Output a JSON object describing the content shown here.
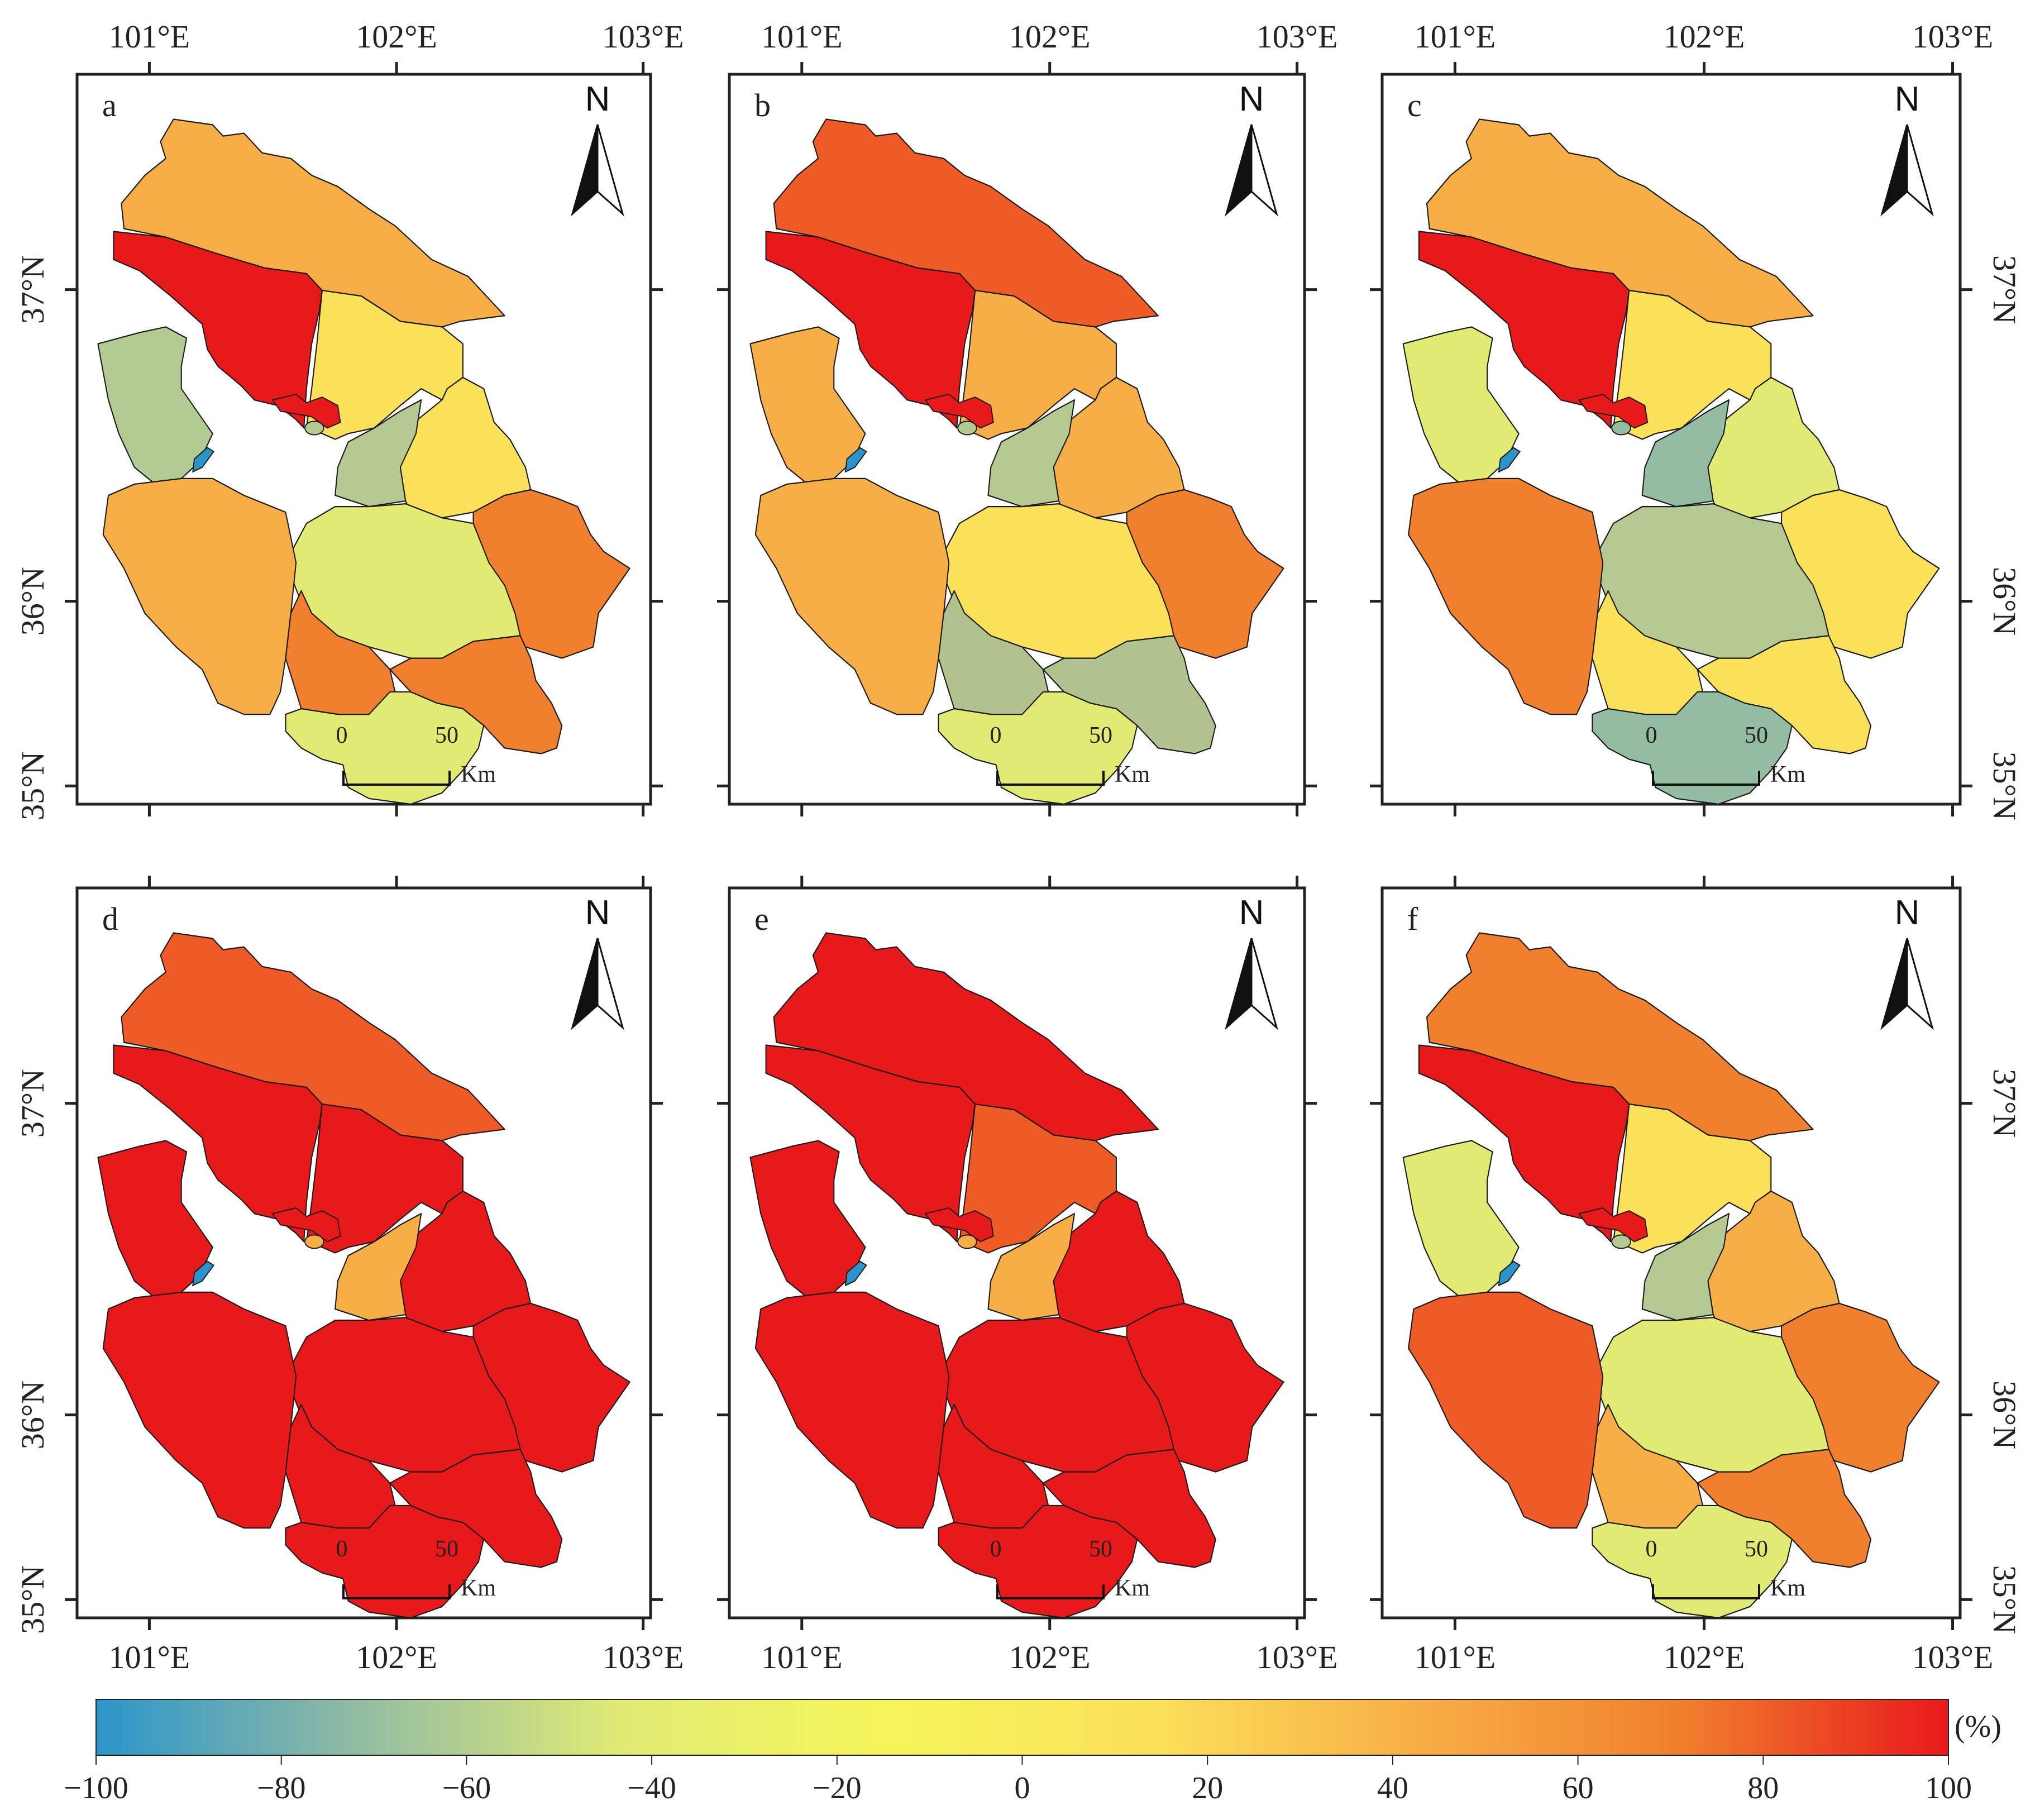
{
  "panels": [
    {
      "letter": "a",
      "colors": {
        "north": "#f8ae46",
        "nw": "#e8191b",
        "center": "#fbe05a",
        "west": "#b2cb92",
        "east": "#fbe05a",
        "cross": "#b6c992",
        "fareast": "#f07f2e",
        "midstrip": "#e1eb74",
        "sw": "#f8ae46",
        "scenter": "#f07f2e",
        "se": "#f07f2e",
        "south": "#e1eb74",
        "spots": "#e8191b"
      }
    },
    {
      "letter": "b",
      "colors": {
        "north": "#ef5b26",
        "nw": "#e8191b",
        "center": "#f8ae46",
        "west": "#f8ae46",
        "east": "#f8ae46",
        "cross": "#b6c992",
        "fareast": "#f07f2e",
        "midstrip": "#fbe05a",
        "sw": "#f8ae46",
        "scenter": "#b2c28e",
        "se": "#b2c28e",
        "south": "#e1eb74",
        "spots": "#e8191b"
      }
    },
    {
      "letter": "c",
      "colors": {
        "north": "#f8ae46",
        "nw": "#e8191b",
        "center": "#fbe05a",
        "west": "#e1eb74",
        "east": "#e1eb74",
        "cross": "#93bca2",
        "fareast": "#fbe05a",
        "midstrip": "#b6c992",
        "sw": "#f07f2e",
        "scenter": "#fbe05a",
        "se": "#fbe05a",
        "south": "#93bca2",
        "spots": "#e8191b"
      }
    },
    {
      "letter": "d",
      "colors": {
        "north": "#ef5b26",
        "nw": "#e8191b",
        "center": "#e8191b",
        "west": "#e8191b",
        "east": "#e8191b",
        "cross": "#f8ae46",
        "fareast": "#e8191b",
        "midstrip": "#e8191b",
        "sw": "#e8191b",
        "scenter": "#e8191b",
        "se": "#e8191b",
        "south": "#e8191b",
        "spots": "#e8191b"
      }
    },
    {
      "letter": "e",
      "colors": {
        "north": "#e8191b",
        "nw": "#e8191b",
        "center": "#ef5b26",
        "west": "#e8191b",
        "east": "#e8191b",
        "cross": "#f8ae46",
        "fareast": "#e8191b",
        "midstrip": "#e8191b",
        "sw": "#e8191b",
        "scenter": "#e8191b",
        "se": "#e8191b",
        "south": "#e8191b",
        "spots": "#e8191b"
      }
    },
    {
      "letter": "f",
      "colors": {
        "north": "#f07f2e",
        "nw": "#e8191b",
        "center": "#fbe05a",
        "west": "#e1eb74",
        "east": "#f8ae46",
        "cross": "#b6c992",
        "fareast": "#f07f2e",
        "midstrip": "#e1eb74",
        "sw": "#ef5b26",
        "scenter": "#f8ae46",
        "se": "#f07f2e",
        "south": "#e1eb74",
        "spots": "#e8191b"
      }
    }
  ],
  "lon_labels": [
    "101°E",
    "102°E",
    "103°E"
  ],
  "lat_labels": [
    "37°N",
    "36°N",
    "35°N"
  ],
  "north_label": "N",
  "scale": {
    "start": "0",
    "end": "50",
    "unit": "Km"
  },
  "lake_color": "#2b95cb",
  "colorbar": {
    "unit": "(%)",
    "ticks": [
      "−100",
      "−80",
      "−60",
      "−40",
      "−20",
      "0",
      "20",
      "40",
      "60",
      "80",
      "100"
    ],
    "stops": [
      "#2b95cb",
      "#93bca2",
      "#e1eb74",
      "#f5f55a",
      "#fbe05a",
      "#f8ae46",
      "#f07f2e",
      "#e8191b"
    ]
  }
}
